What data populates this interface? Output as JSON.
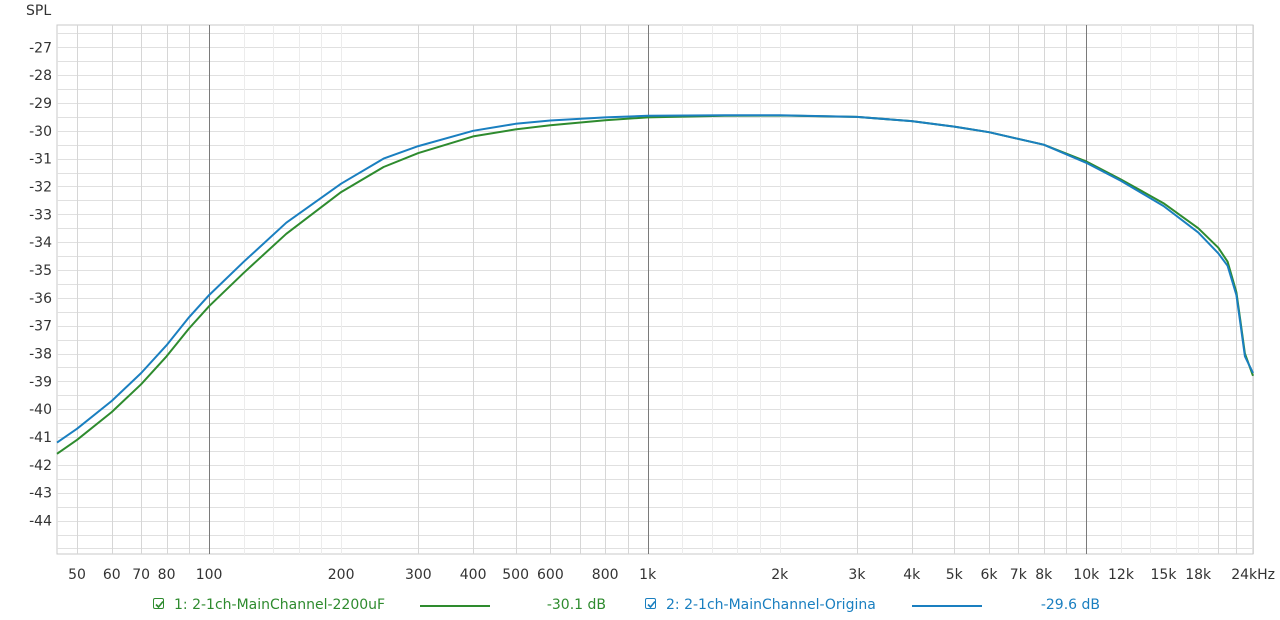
{
  "chart_data": {
    "type": "line",
    "ylabel": "SPL",
    "xscale": "log",
    "xlim": [
      45,
      24000
    ],
    "ylim": [
      -45.2,
      -26.2
    ],
    "ytick_labels": [
      "-27",
      "-28",
      "-29",
      "-30",
      "-31",
      "-32",
      "-33",
      "-34",
      "-35",
      "-36",
      "-37",
      "-38",
      "-39",
      "-40",
      "-41",
      "-42",
      "-43",
      "-44"
    ],
    "xticks": [
      {
        "v": 50,
        "label": "50"
      },
      {
        "v": 60,
        "label": "60"
      },
      {
        "v": 70,
        "label": "70"
      },
      {
        "v": 80,
        "label": "80"
      },
      {
        "v": 100,
        "label": "100"
      },
      {
        "v": 200,
        "label": "200"
      },
      {
        "v": 300,
        "label": "300"
      },
      {
        "v": 400,
        "label": "400"
      },
      {
        "v": 500,
        "label": "500"
      },
      {
        "v": 600,
        "label": "600"
      },
      {
        "v": 800,
        "label": "800"
      },
      {
        "v": 1000,
        "label": "1k"
      },
      {
        "v": 2000,
        "label": "2k"
      },
      {
        "v": 3000,
        "label": "3k"
      },
      {
        "v": 4000,
        "label": "4k"
      },
      {
        "v": 5000,
        "label": "5k"
      },
      {
        "v": 6000,
        "label": "6k"
      },
      {
        "v": 7000,
        "label": "7k"
      },
      {
        "v": 8000,
        "label": "8k"
      },
      {
        "v": 10000,
        "label": "10k"
      },
      {
        "v": 12000,
        "label": "12k"
      },
      {
        "v": 15000,
        "label": "15k"
      },
      {
        "v": 18000,
        "label": "18k"
      },
      {
        "v": 24000,
        "label": "24kHz"
      }
    ],
    "grid": true,
    "series": [
      {
        "name": "1: 2-1ch-MainChannel-2200uF",
        "color": "#2e8b2e",
        "readout": "-30.1 dB",
        "checked": true,
        "x": [
          45,
          50,
          60,
          70,
          80,
          90,
          100,
          120,
          150,
          200,
          250,
          300,
          400,
          500,
          600,
          800,
          1000,
          1500,
          2000,
          3000,
          4000,
          5000,
          6000,
          8000,
          10000,
          12000,
          15000,
          18000,
          20000,
          21000,
          22000,
          22500,
          23000,
          24000
        ],
        "y": [
          -41.6,
          -41.1,
          -40.1,
          -39.1,
          -38.1,
          -37.1,
          -36.3,
          -35.1,
          -33.7,
          -32.2,
          -31.3,
          -30.8,
          -30.2,
          -29.95,
          -29.8,
          -29.62,
          -29.52,
          -29.46,
          -29.45,
          -29.5,
          -29.65,
          -29.85,
          -30.05,
          -30.5,
          -31.1,
          -31.75,
          -32.6,
          -33.5,
          -34.2,
          -34.7,
          -35.8,
          -36.9,
          -38.0,
          -38.8
        ]
      },
      {
        "name": "2: 2-1ch-MainChannel-Origina",
        "color": "#1a7fc0",
        "readout": "-29.6 dB",
        "checked": true,
        "x": [
          45,
          50,
          60,
          70,
          80,
          90,
          100,
          120,
          150,
          200,
          250,
          300,
          400,
          500,
          600,
          800,
          1000,
          1500,
          2000,
          3000,
          4000,
          5000,
          6000,
          8000,
          10000,
          12000,
          15000,
          18000,
          20000,
          21000,
          22000,
          22500,
          23000,
          24000
        ],
        "y": [
          -41.2,
          -40.7,
          -39.7,
          -38.7,
          -37.7,
          -36.7,
          -35.9,
          -34.7,
          -33.3,
          -31.9,
          -31.0,
          -30.55,
          -30.0,
          -29.75,
          -29.63,
          -29.52,
          -29.46,
          -29.44,
          -29.44,
          -29.5,
          -29.65,
          -29.85,
          -30.05,
          -30.5,
          -31.15,
          -31.8,
          -32.7,
          -33.65,
          -34.4,
          -34.85,
          -35.9,
          -37.0,
          -38.1,
          -38.7
        ]
      }
    ]
  }
}
